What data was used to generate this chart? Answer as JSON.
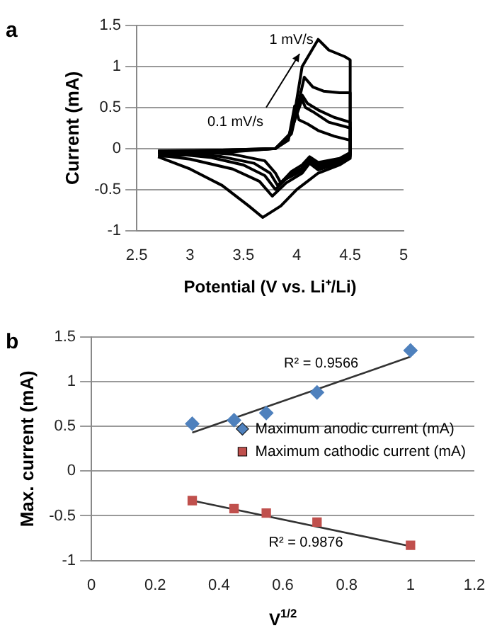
{
  "chart_data": [
    {
      "type": "line",
      "title": "a",
      "xlabel": "Potential (V vs. Li⁺/Li)",
      "ylabel": "Current (mA)",
      "xlim": [
        2.5,
        5
      ],
      "xticks": [
        2.5,
        3,
        3.5,
        4,
        4.5,
        5
      ],
      "ylim": [
        -1,
        1.5
      ],
      "yticks": [
        -1,
        -0.5,
        0,
        0.5,
        1,
        1.5
      ],
      "grid": "y",
      "marker": "none",
      "legend": false,
      "annotations": [
        "1 mV/s",
        "0.1 mV/s"
      ],
      "series": [
        {
          "color": "#000000",
          "x": [
            2.7,
            3.3,
            3.8,
            3.92,
            3.98,
            4.02,
            4.1,
            4.2,
            4.35,
            4.5
          ],
          "values": [
            -0.03,
            -0.02,
            0,
            0.1,
            0.52,
            0.35,
            0.3,
            0.22,
            0.15,
            0.1
          ]
        },
        {
          "color": "#000000",
          "x": [
            4.5,
            4.5,
            4.4,
            4.2,
            4.12,
            4.05,
            3.95,
            3.85,
            3.8,
            3.7,
            3.4,
            3.0,
            2.7
          ],
          "values": [
            0.1,
            -0.05,
            -0.12,
            -0.17,
            -0.1,
            -0.2,
            -0.28,
            -0.42,
            -0.3,
            -0.15,
            -0.07,
            -0.04,
            -0.03
          ]
        },
        {
          "color": "#000000",
          "x": [
            2.7,
            3.3,
            3.8,
            3.92,
            4.05,
            4.08,
            4.15,
            4.3,
            4.5
          ],
          "values": [
            -0.04,
            -0.02,
            0,
            0.12,
            0.6,
            0.5,
            0.45,
            0.32,
            0.25
          ]
        },
        {
          "color": "#000000",
          "x": [
            4.5,
            4.5,
            4.4,
            4.2,
            4.12,
            4.05,
            3.92,
            3.82,
            3.75,
            3.6,
            3.3,
            3.0,
            2.7
          ],
          "values": [
            0.25,
            -0.07,
            -0.14,
            -0.2,
            -0.13,
            -0.24,
            -0.33,
            -0.45,
            -0.3,
            -0.18,
            -0.1,
            -0.06,
            -0.04
          ]
        },
        {
          "color": "#000000",
          "x": [
            2.7,
            3.3,
            3.8,
            3.92,
            4.05,
            4.1,
            4.2,
            4.35,
            4.5
          ],
          "values": [
            -0.05,
            -0.03,
            0,
            0.14,
            0.65,
            0.55,
            0.47,
            0.38,
            0.32
          ]
        },
        {
          "color": "#000000",
          "x": [
            4.5,
            4.5,
            4.4,
            4.2,
            4.12,
            4.05,
            3.9,
            3.8,
            3.7,
            3.5,
            3.2,
            2.9,
            2.7
          ],
          "values": [
            0.32,
            -0.08,
            -0.16,
            -0.23,
            -0.15,
            -0.27,
            -0.37,
            -0.5,
            -0.33,
            -0.2,
            -0.11,
            -0.07,
            -0.05
          ]
        },
        {
          "color": "#000000",
          "x": [
            2.7,
            3.3,
            3.8,
            3.95,
            4.07,
            4.15,
            4.25,
            4.4,
            4.5
          ],
          "values": [
            -0.07,
            -0.04,
            0,
            0.18,
            0.87,
            0.75,
            0.7,
            0.68,
            0.68
          ]
        },
        {
          "color": "#000000",
          "x": [
            4.5,
            4.5,
            4.4,
            4.2,
            4.12,
            4.05,
            3.9,
            3.77,
            3.65,
            3.4,
            3.0,
            2.7
          ],
          "values": [
            0.68,
            -0.1,
            -0.18,
            -0.26,
            -0.18,
            -0.3,
            -0.42,
            -0.58,
            -0.4,
            -0.25,
            -0.13,
            -0.08
          ]
        },
        {
          "color": "#000000",
          "x": [
            2.7,
            3.3,
            3.8,
            3.95,
            4.05,
            4.2,
            4.3,
            4.45,
            4.5
          ],
          "values": [
            -0.1,
            -0.05,
            0,
            0.2,
            1.0,
            1.33,
            1.2,
            1.12,
            1.08
          ]
        },
        {
          "color": "#000000",
          "x": [
            4.5,
            4.5,
            4.4,
            4.2,
            4.0,
            3.85,
            3.68,
            3.55,
            3.3,
            3.0,
            2.7
          ],
          "values": [
            1.08,
            -0.12,
            -0.2,
            -0.3,
            -0.5,
            -0.7,
            -0.84,
            -0.7,
            -0.45,
            -0.25,
            -0.1
          ]
        }
      ]
    },
    {
      "type": "scatter",
      "title": "b",
      "xlabel": "V$^{1/2}$",
      "ylabel": "Max. current (mA)",
      "xlim": [
        0,
        1.2
      ],
      "xticks": [
        0,
        0.2,
        0.4,
        0.6,
        0.8,
        1,
        1.2
      ],
      "ylim": [
        -1,
        1.5
      ],
      "yticks": [
        -1,
        -0.5,
        0,
        0.5,
        1,
        1.5
      ],
      "grid": "y",
      "legend": "right",
      "annotations": [
        "R² = 0.9566",
        "R² = 0.9876"
      ],
      "series": [
        {
          "name": "Maximum anodic current (mA)",
          "color": "#4f81bd",
          "marker": "diamond",
          "x": [
            0.316,
            0.447,
            0.548,
            0.707,
            1
          ],
          "values": [
            0.53,
            0.57,
            0.65,
            0.88,
            1.35
          ]
        },
        {
          "name": "Maximum cathodic current (mA)",
          "color": "#c0504d",
          "marker": "square",
          "x": [
            0.316,
            0.447,
            0.548,
            0.707,
            1
          ],
          "values": [
            -0.33,
            -0.42,
            -0.47,
            -0.57,
            -0.83
          ]
        },
        {
          "type": "line",
          "color": "#333333",
          "marker": "none",
          "x": [
            0.316,
            1
          ],
          "values": [
            0.43,
            1.28
          ]
        },
        {
          "type": "line",
          "color": "#333333",
          "marker": "none",
          "x": [
            0.316,
            1
          ],
          "values": [
            -0.33,
            -0.84
          ]
        }
      ]
    }
  ]
}
